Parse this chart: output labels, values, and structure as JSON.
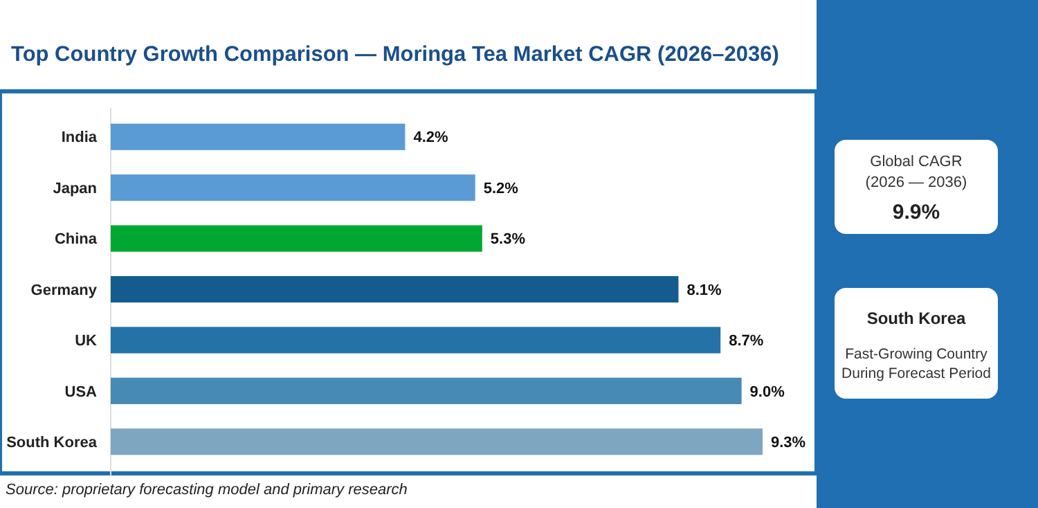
{
  "chart_data": [
    {
      "type": "bar",
      "orientation": "horizontal",
      "title": "Top Country Growth Comparison — Moringa Tea Market CAGR (2026–2036)",
      "categories": [
        "India",
        "Japan",
        "China",
        "Germany",
        "UK",
        "USA",
        "South Korea"
      ],
      "values": [
        4.2,
        5.2,
        5.3,
        8.1,
        8.7,
        9.0,
        9.3
      ],
      "colors": [
        "#5b9bd5",
        "#5b9bd5",
        "#00a832",
        "#145c8f",
        "#2472a8",
        "#468ab5",
        "#7fa6c0"
      ],
      "value_labels": [
        "4.2%",
        "5.2%",
        "5.3%",
        "8.1%",
        "8.7%",
        "9.0%",
        "9.3%"
      ],
      "xlim": [
        0,
        9.3
      ],
      "tick_labels": "y",
      "annotations": [
        "Source: proprietary forecasting model and primary research"
      ]
    },
    {
      "type": "other",
      "annotations": [
        "Global CAGR",
        "(2026 — 2036)",
        "9.9%",
        "South Korea",
        "Fast-Growing Country",
        "During Forecast Period"
      ]
    }
  ]
}
